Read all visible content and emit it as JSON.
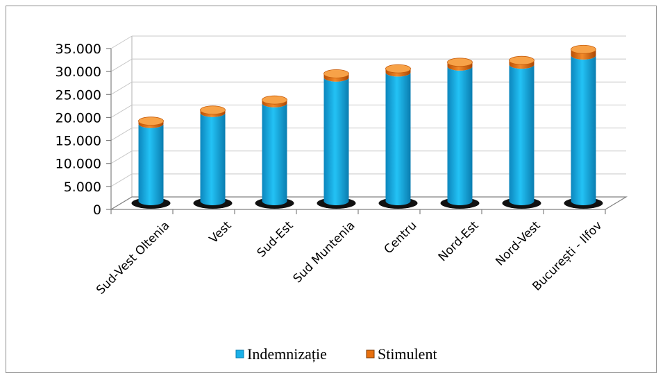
{
  "chart_data": {
    "type": "bar",
    "style": "3d-cylinder-stacked",
    "categories": [
      "Sud-Vest Oltenia",
      "Vest",
      "Sud-Est",
      "Sud Muntenia",
      "Centru",
      "Nord-Est",
      "Nord-Vest",
      "București - Ilfov"
    ],
    "series": [
      {
        "name": "Indemnizație",
        "color": "#1ab0e8",
        "values": [
          16800,
          19200,
          21300,
          26900,
          28000,
          29300,
          29700,
          31700
        ]
      },
      {
        "name": "Stimulent",
        "color": "#e8700f",
        "values": [
          600,
          600,
          700,
          800,
          800,
          900,
          900,
          1300
        ]
      }
    ],
    "ylim": [
      0,
      35000
    ],
    "yticks": [
      0,
      5000,
      10000,
      15000,
      20000,
      25000,
      30000,
      35000
    ],
    "ytick_labels": [
      "0",
      "5.000",
      "10.000",
      "15.000",
      "20.000",
      "25.000",
      "30.000",
      "35.000"
    ],
    "title": "",
    "xlabel": "",
    "ylabel": "",
    "grid": true,
    "legend_position": "bottom"
  }
}
